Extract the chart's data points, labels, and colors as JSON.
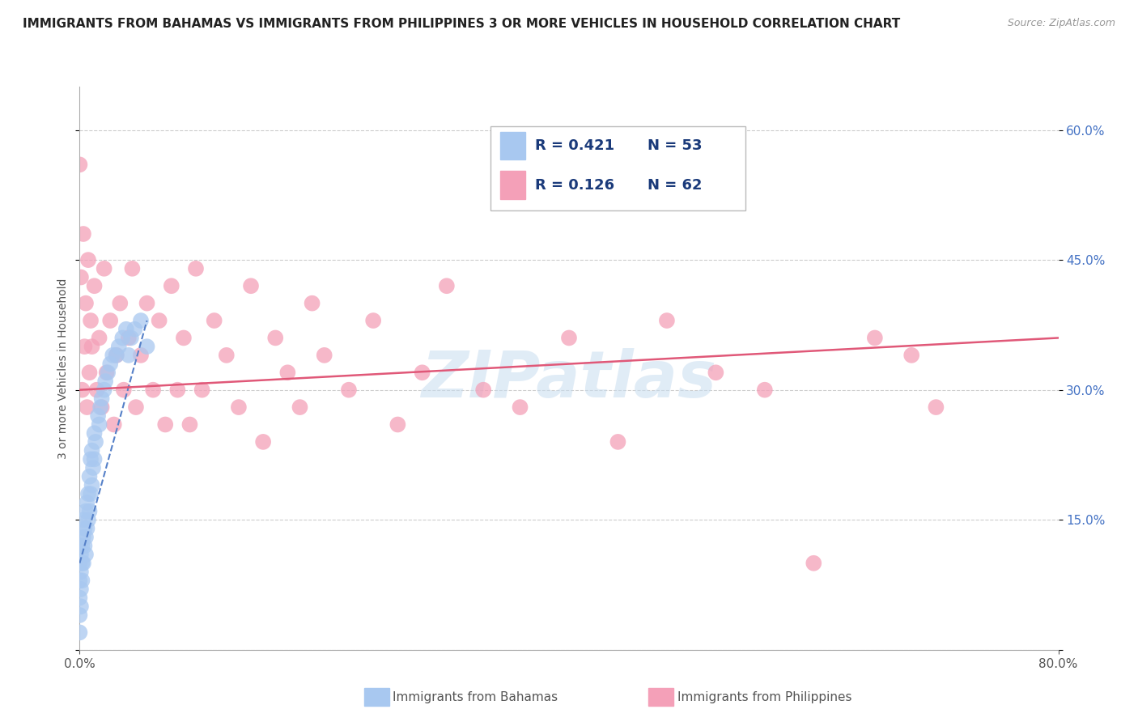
{
  "title": "IMMIGRANTS FROM BAHAMAS VS IMMIGRANTS FROM PHILIPPINES 3 OR MORE VEHICLES IN HOUSEHOLD CORRELATION CHART",
  "source": "Source: ZipAtlas.com",
  "ylabel": "3 or more Vehicles in Household",
  "x_min": 0.0,
  "x_max": 0.8,
  "y_min": 0.0,
  "y_max": 0.65,
  "y_ticks": [
    0.0,
    0.15,
    0.3,
    0.45,
    0.6
  ],
  "series_bahamas": {
    "name": "Immigrants from Bahamas",
    "color": "#a8c8f0",
    "R": 0.421,
    "N": 53,
    "x": [
      0.0,
      0.0,
      0.0,
      0.0,
      0.0,
      0.0,
      0.001,
      0.001,
      0.001,
      0.001,
      0.002,
      0.002,
      0.002,
      0.003,
      0.003,
      0.003,
      0.004,
      0.004,
      0.005,
      0.005,
      0.005,
      0.006,
      0.006,
      0.007,
      0.007,
      0.008,
      0.008,
      0.009,
      0.009,
      0.01,
      0.01,
      0.011,
      0.012,
      0.012,
      0.013,
      0.015,
      0.016,
      0.017,
      0.018,
      0.02,
      0.021,
      0.023,
      0.025,
      0.027,
      0.03,
      0.032,
      0.035,
      0.038,
      0.04,
      0.042,
      0.045,
      0.05,
      0.055
    ],
    "y": [
      0.02,
      0.04,
      0.06,
      0.08,
      0.1,
      0.12,
      0.05,
      0.07,
      0.09,
      0.11,
      0.08,
      0.1,
      0.12,
      0.1,
      0.13,
      0.15,
      0.12,
      0.14,
      0.11,
      0.13,
      0.16,
      0.14,
      0.17,
      0.15,
      0.18,
      0.16,
      0.2,
      0.18,
      0.22,
      0.19,
      0.23,
      0.21,
      0.22,
      0.25,
      0.24,
      0.27,
      0.26,
      0.28,
      0.29,
      0.3,
      0.31,
      0.32,
      0.33,
      0.34,
      0.34,
      0.35,
      0.36,
      0.37,
      0.34,
      0.36,
      0.37,
      0.38,
      0.35
    ]
  },
  "series_philippines": {
    "name": "Immigrants from Philippines",
    "color": "#f4a0b8",
    "R": 0.126,
    "N": 62,
    "x": [
      0.0,
      0.001,
      0.002,
      0.003,
      0.004,
      0.005,
      0.006,
      0.007,
      0.008,
      0.009,
      0.01,
      0.012,
      0.014,
      0.016,
      0.018,
      0.02,
      0.022,
      0.025,
      0.028,
      0.03,
      0.033,
      0.036,
      0.04,
      0.043,
      0.046,
      0.05,
      0.055,
      0.06,
      0.065,
      0.07,
      0.075,
      0.08,
      0.085,
      0.09,
      0.095,
      0.1,
      0.11,
      0.12,
      0.13,
      0.14,
      0.15,
      0.16,
      0.17,
      0.18,
      0.19,
      0.2,
      0.22,
      0.24,
      0.26,
      0.28,
      0.3,
      0.33,
      0.36,
      0.4,
      0.44,
      0.48,
      0.52,
      0.56,
      0.6,
      0.65,
      0.68,
      0.7
    ],
    "y": [
      0.56,
      0.43,
      0.3,
      0.48,
      0.35,
      0.4,
      0.28,
      0.45,
      0.32,
      0.38,
      0.35,
      0.42,
      0.3,
      0.36,
      0.28,
      0.44,
      0.32,
      0.38,
      0.26,
      0.34,
      0.4,
      0.3,
      0.36,
      0.44,
      0.28,
      0.34,
      0.4,
      0.3,
      0.38,
      0.26,
      0.42,
      0.3,
      0.36,
      0.26,
      0.44,
      0.3,
      0.38,
      0.34,
      0.28,
      0.42,
      0.24,
      0.36,
      0.32,
      0.28,
      0.4,
      0.34,
      0.3,
      0.38,
      0.26,
      0.32,
      0.42,
      0.3,
      0.28,
      0.36,
      0.24,
      0.38,
      0.32,
      0.3,
      0.1,
      0.36,
      0.34,
      0.28
    ]
  },
  "trend_bahamas": {
    "color": "#5580c8",
    "linestyle": "dashed",
    "x_start": 0.0,
    "x_end": 0.055,
    "y_start": 0.1,
    "y_end": 0.38
  },
  "trend_philippines": {
    "color": "#e05878",
    "linestyle": "solid",
    "x_start": 0.0,
    "x_end": 0.8,
    "y_start": 0.3,
    "y_end": 0.36
  },
  "legend_bahamas_color": "#a8c8f0",
  "legend_philippines_color": "#f4a0b8",
  "legend_text_color": "#1a3a7a",
  "watermark_text": "ZIPatlas",
  "watermark_color": "#c8ddf0",
  "background_color": "#ffffff",
  "grid_color": "#cccccc",
  "title_fontsize": 11,
  "source_fontsize": 9,
  "tick_label_fontsize": 11,
  "right_tick_color": "#4472c4"
}
